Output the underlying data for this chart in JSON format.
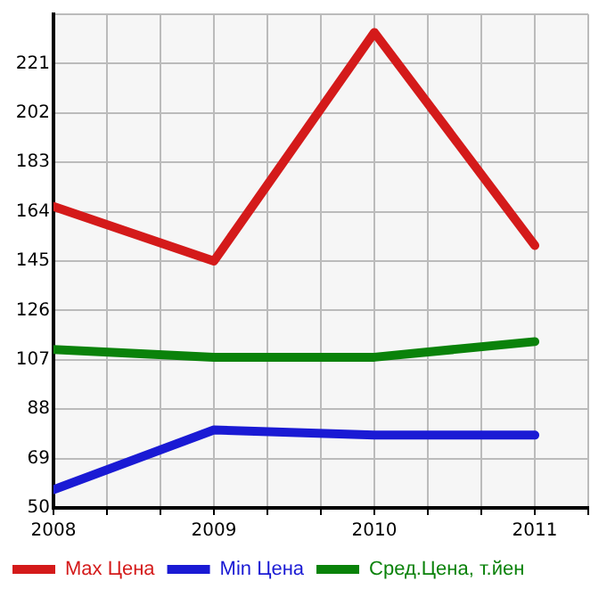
{
  "chart_data": {
    "type": "line",
    "x": [
      2008,
      2009,
      2010,
      2011
    ],
    "series": [
      {
        "name": "Max Цена",
        "color": "#d41a1a",
        "values": [
          166,
          145,
          233,
          151
        ]
      },
      {
        "name": "Min Цена",
        "color": "#1a1ad4",
        "values": [
          57,
          80,
          78,
          78
        ]
      },
      {
        "name": "Сред.Цена, т.йен",
        "color": "#0a820a",
        "values": [
          111,
          108,
          108,
          114
        ]
      }
    ],
    "xlim": [
      2008,
      2011.333
    ],
    "xticks": [
      2008,
      {
        "value": 2008.333,
        "label": null
      },
      {
        "value": 2008.667,
        "label": null
      },
      2009,
      {
        "value": 2009.333,
        "label": null
      },
      {
        "value": 2009.667,
        "label": null
      },
      2010,
      {
        "value": 2010.333,
        "label": null
      },
      {
        "value": 2010.667,
        "label": null
      },
      2011,
      {
        "value": 2011.333,
        "label": null
      }
    ],
    "ylim": [
      50,
      240
    ],
    "yticks": [
      50,
      69,
      88,
      107,
      126,
      145,
      164,
      183,
      202,
      221,
      {
        "value": 240,
        "label": null
      }
    ],
    "grid": true,
    "legend": "bottom",
    "marker": "none",
    "line_style": "solid"
  }
}
